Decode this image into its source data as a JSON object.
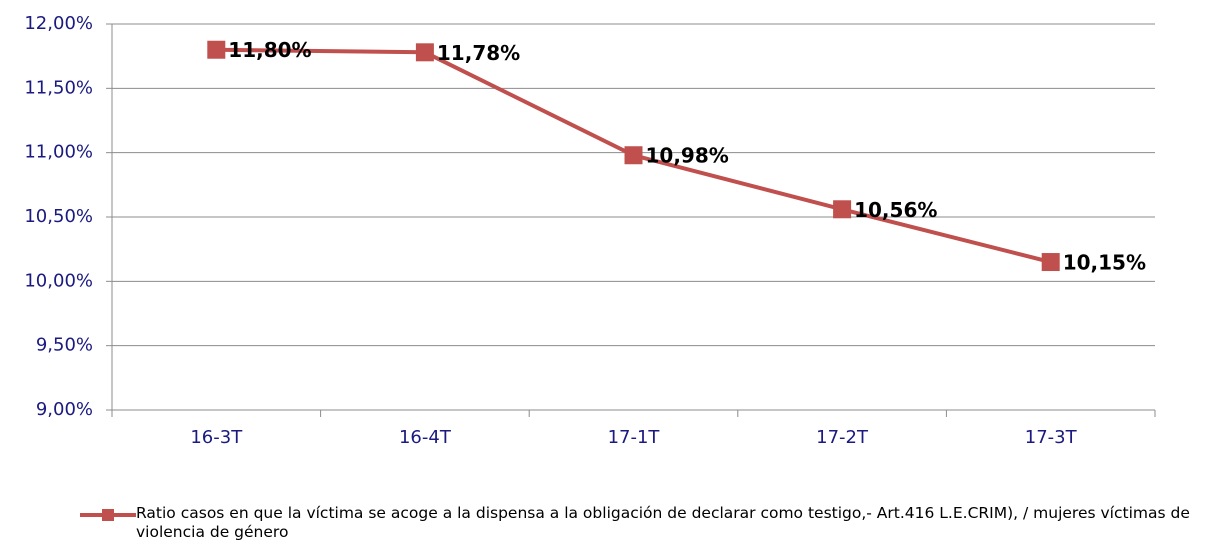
{
  "chart_data": {
    "type": "line",
    "categories": [
      "16-3T",
      "16-4T",
      "17-1T",
      "17-2T",
      "17-3T"
    ],
    "series": [
      {
        "name": "Ratio casos en que la víctima se acoge a la dispensa  a la obligación de declarar como testigo,- Art.416  L.E.CRIM),  / mujeres víctimas de violencia de género",
        "color": "#c0504d",
        "values": [
          11.8,
          11.78,
          10.98,
          10.56,
          10.15
        ],
        "value_labels": [
          "11,80%",
          "11,78%",
          "10,98%",
          "10,56%",
          "10,15%"
        ]
      }
    ],
    "ylim": [
      9,
      12
    ],
    "yticks": [
      {
        "value": 9,
        "label": "9,00%"
      },
      {
        "value": 9.5,
        "label": "9,50%"
      },
      {
        "value": 10,
        "label": "10,00%"
      },
      {
        "value": 10.5,
        "label": "10,50%"
      },
      {
        "value": 11,
        "label": "11,00%"
      },
      {
        "value": 11.5,
        "label": "11,50%"
      },
      {
        "value": 12,
        "label": "12,00%"
      }
    ],
    "grid": true,
    "legend": "bottom"
  }
}
